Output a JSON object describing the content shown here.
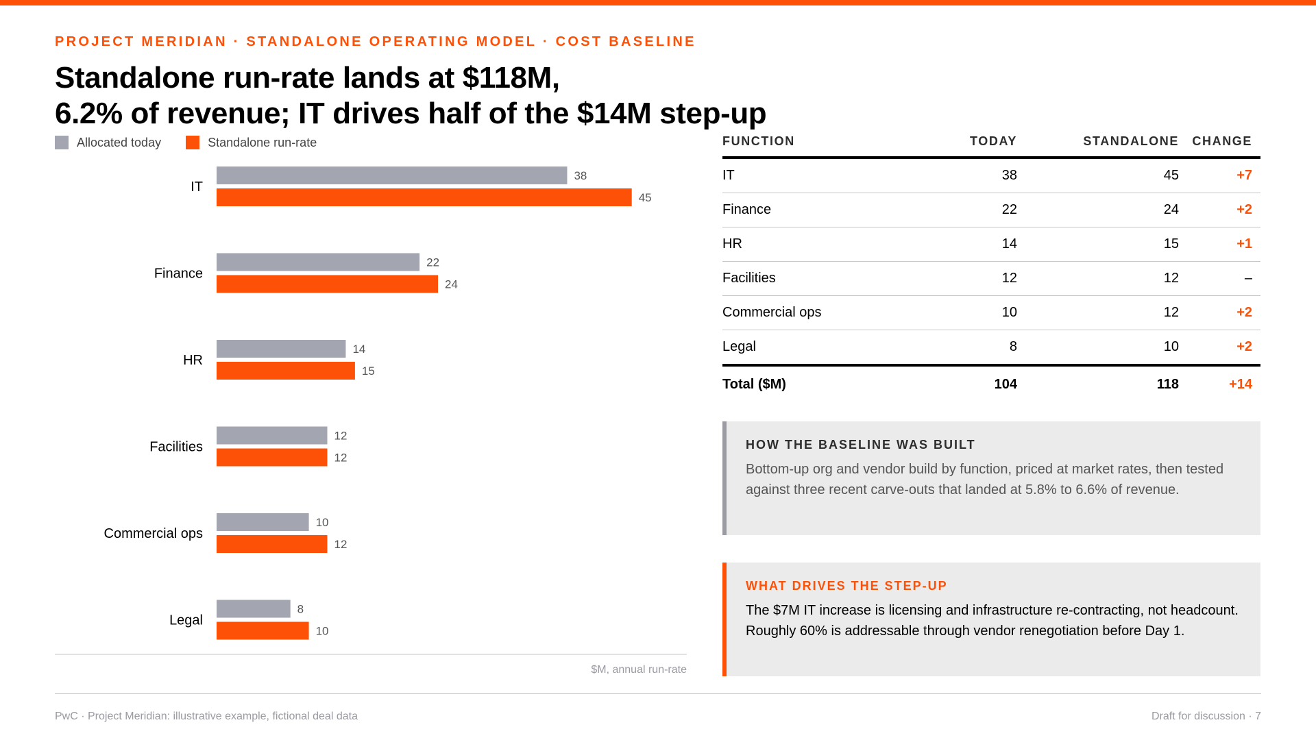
{
  "header": {
    "eyebrow": "PROJECT MERIDIAN · STANDALONE OPERATING MODEL · COST BASELINE",
    "title_line1": "Standalone run-rate lands at $118M,",
    "title_line2": "6.2% of revenue; IT drives half of the $14M step-up"
  },
  "colors": {
    "accent": "#fd5108",
    "allocated": "#a3a6b0",
    "text": "#000000"
  },
  "chart_data": {
    "type": "bar",
    "orientation": "horizontal",
    "categories": [
      "IT",
      "Finance",
      "HR",
      "Facilities",
      "Commercial ops",
      "Legal"
    ],
    "series": [
      {
        "name": "Allocated today",
        "values": [
          38,
          22,
          14,
          12,
          10,
          8
        ],
        "color": "#a3a6b0"
      },
      {
        "name": "Standalone run-rate",
        "values": [
          45,
          24,
          15,
          12,
          12,
          10
        ],
        "color": "#fd5108"
      }
    ],
    "xlim": [
      0,
      50
    ],
    "axis_note": "$M, annual run-rate",
    "legend_position": "top-left",
    "grid": false
  },
  "table": {
    "headers": [
      "FUNCTION",
      "TODAY",
      "STANDALONE",
      "CHANGE"
    ],
    "rows": [
      {
        "function": "IT",
        "today": "38",
        "standalone": "45",
        "change": "+7"
      },
      {
        "function": "Finance",
        "today": "22",
        "standalone": "24",
        "change": "+2"
      },
      {
        "function": "HR",
        "today": "14",
        "standalone": "15",
        "change": "+1"
      },
      {
        "function": "Facilities",
        "today": "12",
        "standalone": "12",
        "change": "–"
      },
      {
        "function": "Commercial ops",
        "today": "10",
        "standalone": "12",
        "change": "+2"
      },
      {
        "function": "Legal",
        "today": "8",
        "standalone": "10",
        "change": "+2"
      }
    ],
    "total": {
      "function": "Total ($M)",
      "today": "104",
      "standalone": "118",
      "change": "+14"
    }
  },
  "callouts": {
    "baseline": {
      "heading": "HOW THE BASELINE WAS BUILT",
      "body": "Bottom-up org and vendor build by function, priced at market rates, then tested against three recent carve-outs that landed at 5.8% to 6.6% of revenue."
    },
    "stepup": {
      "heading": "WHAT DRIVES THE STEP-UP",
      "body": "The $7M IT increase is licensing and infrastructure re-contracting, not headcount. Roughly 60% is addressable through vendor renegotiation before Day 1."
    }
  },
  "footer": {
    "left": "PwC · Project Meridian: illustrative example, fictional deal data",
    "right": "Draft for discussion · 7"
  }
}
